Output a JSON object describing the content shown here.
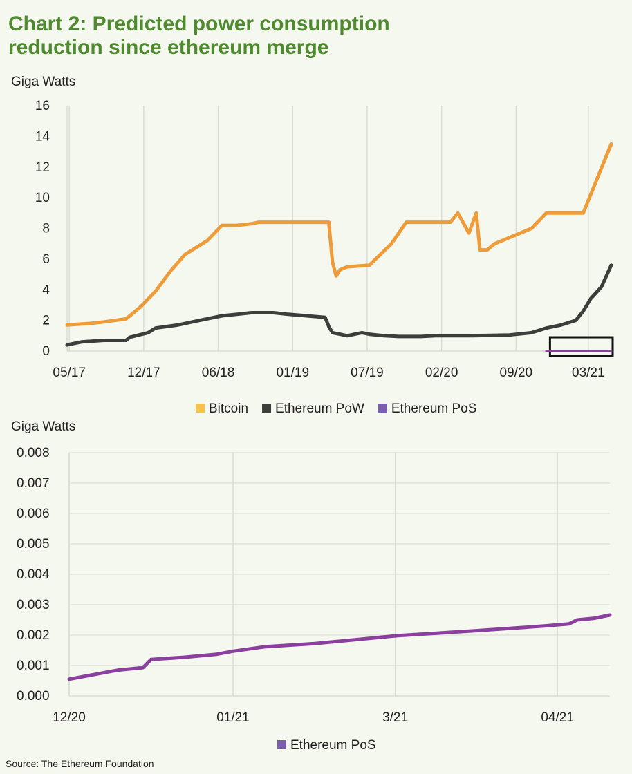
{
  "title_line1": "Chart 2: Predicted power consumption",
  "title_line2": "reduction since ethereum merge",
  "source": "Source: The Ethereum Foundation",
  "colors": {
    "background": "#f4f8ee",
    "title": "#4f8a2f",
    "bitcoin": "#ee9b3a",
    "ethereum_pow": "#3d3d3b",
    "ethereum_pos": "#8b3f9e",
    "legend_pos": "#7a5fae",
    "legend_bitcoin": "#f6c24e",
    "grid": "#d9ddd4"
  },
  "chart_data": [
    {
      "type": "line",
      "ylabel": "Giga Watts",
      "ylim": [
        0,
        16
      ],
      "yticks": [
        "0",
        "2",
        "4",
        "6",
        "8",
        "10",
        "12",
        "14",
        "16"
      ],
      "xticks": [
        "05/17",
        "12/17",
        "06/18",
        "01/19",
        "07/19",
        "02/20",
        "09/20",
        "03/21"
      ],
      "xlim": [
        0,
        7.4
      ],
      "grid": "vertical",
      "legend": "bottom-center",
      "annotation": "box-around-ethereum-pos",
      "series": [
        {
          "name": "Bitcoin",
          "color_key": "bitcoin",
          "x": [
            0,
            0.3,
            0.5,
            0.8,
            1.0,
            1.2,
            1.4,
            1.6,
            1.9,
            2.1,
            2.3,
            2.5,
            2.6,
            3.0,
            3.55,
            3.6,
            3.65,
            3.7,
            3.8,
            4.1,
            4.4,
            4.6,
            4.9,
            5.2,
            5.3,
            5.45,
            5.55,
            5.6,
            5.7,
            5.8,
            6.0,
            6.3,
            6.5,
            6.9,
            7.0,
            7.38
          ],
          "y": [
            1.7,
            1.8,
            1.9,
            2.1,
            2.9,
            3.9,
            5.2,
            6.3,
            7.2,
            8.2,
            8.2,
            8.3,
            8.4,
            8.4,
            8.4,
            5.8,
            4.9,
            5.3,
            5.5,
            5.6,
            7.0,
            8.4,
            8.4,
            8.4,
            9.0,
            7.7,
            9.0,
            6.6,
            6.6,
            7.0,
            7.4,
            8.0,
            9.0,
            9.0,
            9.0,
            13.5
          ]
        },
        {
          "name": "Ethereum PoW",
          "color_key": "ethereum_pow",
          "x": [
            0,
            0.2,
            0.5,
            0.8,
            0.85,
            1.1,
            1.2,
            1.5,
            1.8,
            2.1,
            2.3,
            2.5,
            2.8,
            3.0,
            3.5,
            3.55,
            3.6,
            3.7,
            3.8,
            4.0,
            4.1,
            4.3,
            4.5,
            4.8,
            5.0,
            5.5,
            6.0,
            6.3,
            6.5,
            6.7,
            6.9,
            7.0,
            7.1,
            7.25,
            7.38
          ],
          "y": [
            0.4,
            0.6,
            0.7,
            0.7,
            0.9,
            1.2,
            1.5,
            1.7,
            2.0,
            2.3,
            2.4,
            2.5,
            2.5,
            2.4,
            2.2,
            1.6,
            1.2,
            1.1,
            1.0,
            1.2,
            1.1,
            1.0,
            0.95,
            0.95,
            1.0,
            1.0,
            1.05,
            1.2,
            1.5,
            1.7,
            2.0,
            2.6,
            3.4,
            4.2,
            5.6
          ]
        },
        {
          "name": "Ethereum PoS",
          "color_key": "ethereum_pos",
          "x": [
            6.5,
            7.38
          ],
          "y": [
            0.0026,
            0.0026
          ]
        }
      ]
    },
    {
      "type": "line",
      "ylabel": "Giga Watts",
      "ylim": [
        0,
        0.008
      ],
      "yticks": [
        "0.000",
        "0.001",
        "0.002",
        "0.003",
        "0.004",
        "0.005",
        "0.006",
        "0.007",
        "0.008"
      ],
      "xticks": [
        "12/20",
        "01/21",
        "3/21",
        "04/21"
      ],
      "xlim": [
        0,
        3.3
      ],
      "grid": "both",
      "legend": "bottom-center",
      "series": [
        {
          "name": "Ethereum PoS",
          "color_key": "ethereum_pos",
          "x": [
            0,
            0.15,
            0.3,
            0.45,
            0.5,
            0.7,
            0.9,
            1.0,
            1.2,
            1.5,
            2.0,
            2.5,
            2.9,
            3.05,
            3.1,
            3.2,
            3.3
          ],
          "y": [
            0.00055,
            0.0007,
            0.00085,
            0.00093,
            0.0012,
            0.00127,
            0.00137,
            0.00147,
            0.00162,
            0.00172,
            0.00198,
            0.00215,
            0.0023,
            0.00237,
            0.0025,
            0.00255,
            0.00266
          ]
        }
      ]
    }
  ]
}
